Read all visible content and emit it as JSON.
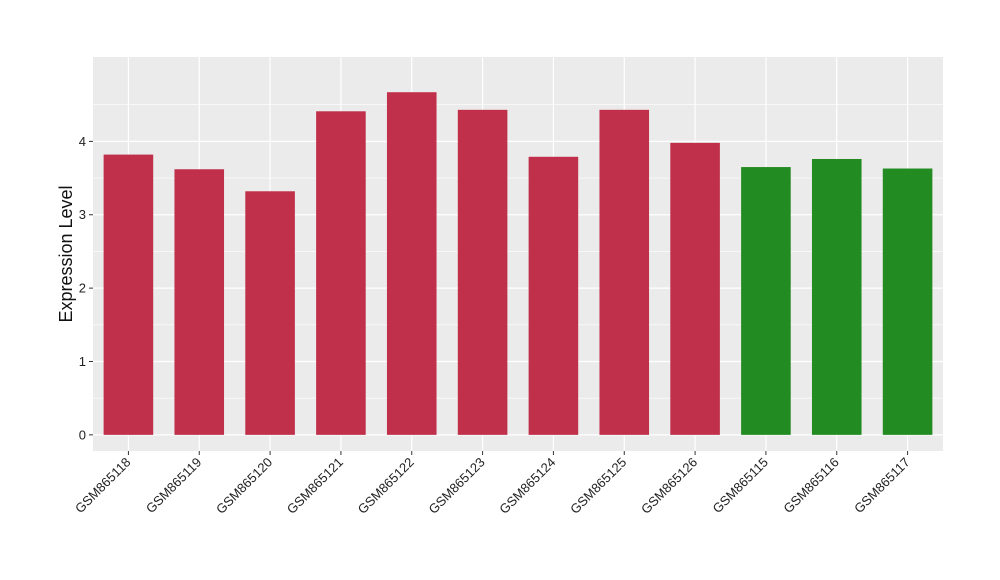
{
  "chart_data": {
    "type": "bar",
    "title": "",
    "xlabel": "",
    "ylabel": "Expression Level",
    "ylim": [
      -0.22,
      5.15
    ],
    "yticks": [
      0,
      1,
      2,
      3,
      4
    ],
    "grid": true,
    "legend": "none",
    "categories": [
      "GSM865118",
      "GSM865119",
      "GSM865120",
      "GSM865121",
      "GSM865122",
      "GSM865123",
      "GSM865124",
      "GSM865125",
      "GSM865126",
      "GSM865115",
      "GSM865116",
      "GSM865117"
    ],
    "values": [
      3.82,
      3.62,
      3.32,
      4.41,
      4.67,
      4.43,
      3.79,
      4.43,
      3.98,
      3.65,
      3.76,
      3.63
    ],
    "bar_colors": [
      "#c0304a",
      "#c0304a",
      "#c0304a",
      "#c0304a",
      "#c0304a",
      "#c0304a",
      "#c0304a",
      "#c0304a",
      "#c0304a",
      "#228b22",
      "#228b22",
      "#228b22"
    ],
    "panel_background": "#ebebeb",
    "gridline_color": "#ffffff"
  }
}
